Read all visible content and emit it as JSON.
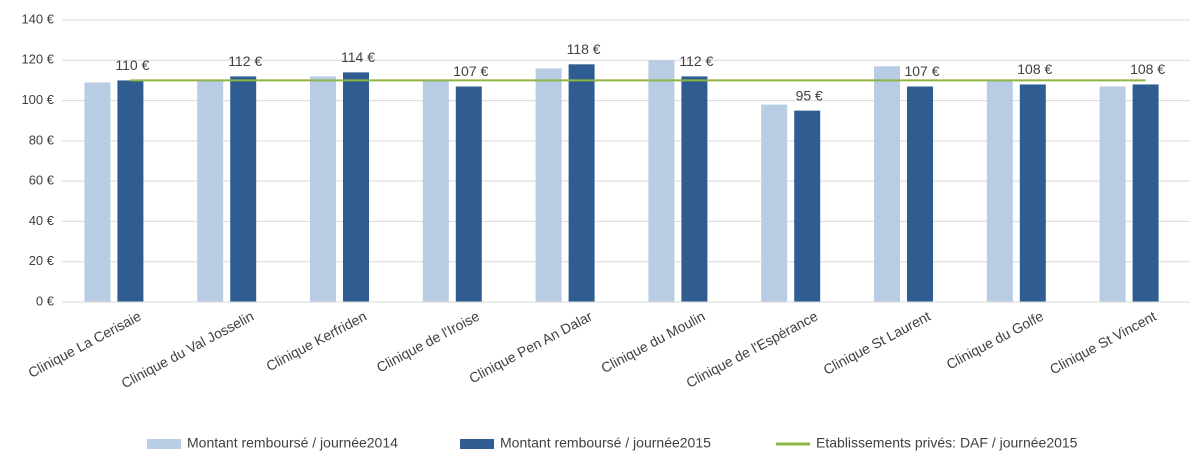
{
  "chart_data": {
    "type": "bar",
    "categories": [
      "Clinique La Cerisaie",
      "Clinique du Val Josselin",
      "Clinique Kerfriden",
      "Clinique de l'Iroise",
      "Clinique Pen An Dalar",
      "Clinique du Moulin",
      "Clinique de l'Espérance",
      "Clinique St Laurent",
      "Clinique du Golfe",
      "Clinique St Vincent"
    ],
    "series": [
      {
        "name": "Montant remboursé / journée2014",
        "color": "#b8cce4",
        "values": [
          109,
          110,
          112,
          110,
          116,
          120,
          98,
          117,
          110,
          107
        ]
      },
      {
        "name": "Montant remboursé / journée2015",
        "color": "#2f5d91",
        "values": [
          110,
          112,
          114,
          107,
          118,
          112,
          95,
          107,
          108,
          108
        ],
        "value_labels": [
          "110 €",
          "112 €",
          "114 €",
          "107 €",
          "118 €",
          "112 €",
          "95 €",
          "107 €",
          "108 €",
          "108 €"
        ]
      },
      {
        "name": "Etablissements privés: DAF / journée2015",
        "color": "#8db543",
        "type": "line",
        "values": [
          110,
          110,
          110,
          110,
          110,
          110,
          110,
          110,
          110,
          110
        ]
      }
    ],
    "ylim": [
      0,
      140
    ],
    "yticks": [
      {
        "value": 0,
        "label": "0 €"
      },
      {
        "value": 20,
        "label": "20 €"
      },
      {
        "value": 40,
        "label": "40 €"
      },
      {
        "value": 60,
        "label": "60 €"
      },
      {
        "value": 80,
        "label": "80 €"
      },
      {
        "value": 100,
        "label": "100 €"
      },
      {
        "value": 120,
        "label": "120 €"
      },
      {
        "value": 140,
        "label": "140 €"
      }
    ],
    "grid": true,
    "legend": "bottom"
  }
}
